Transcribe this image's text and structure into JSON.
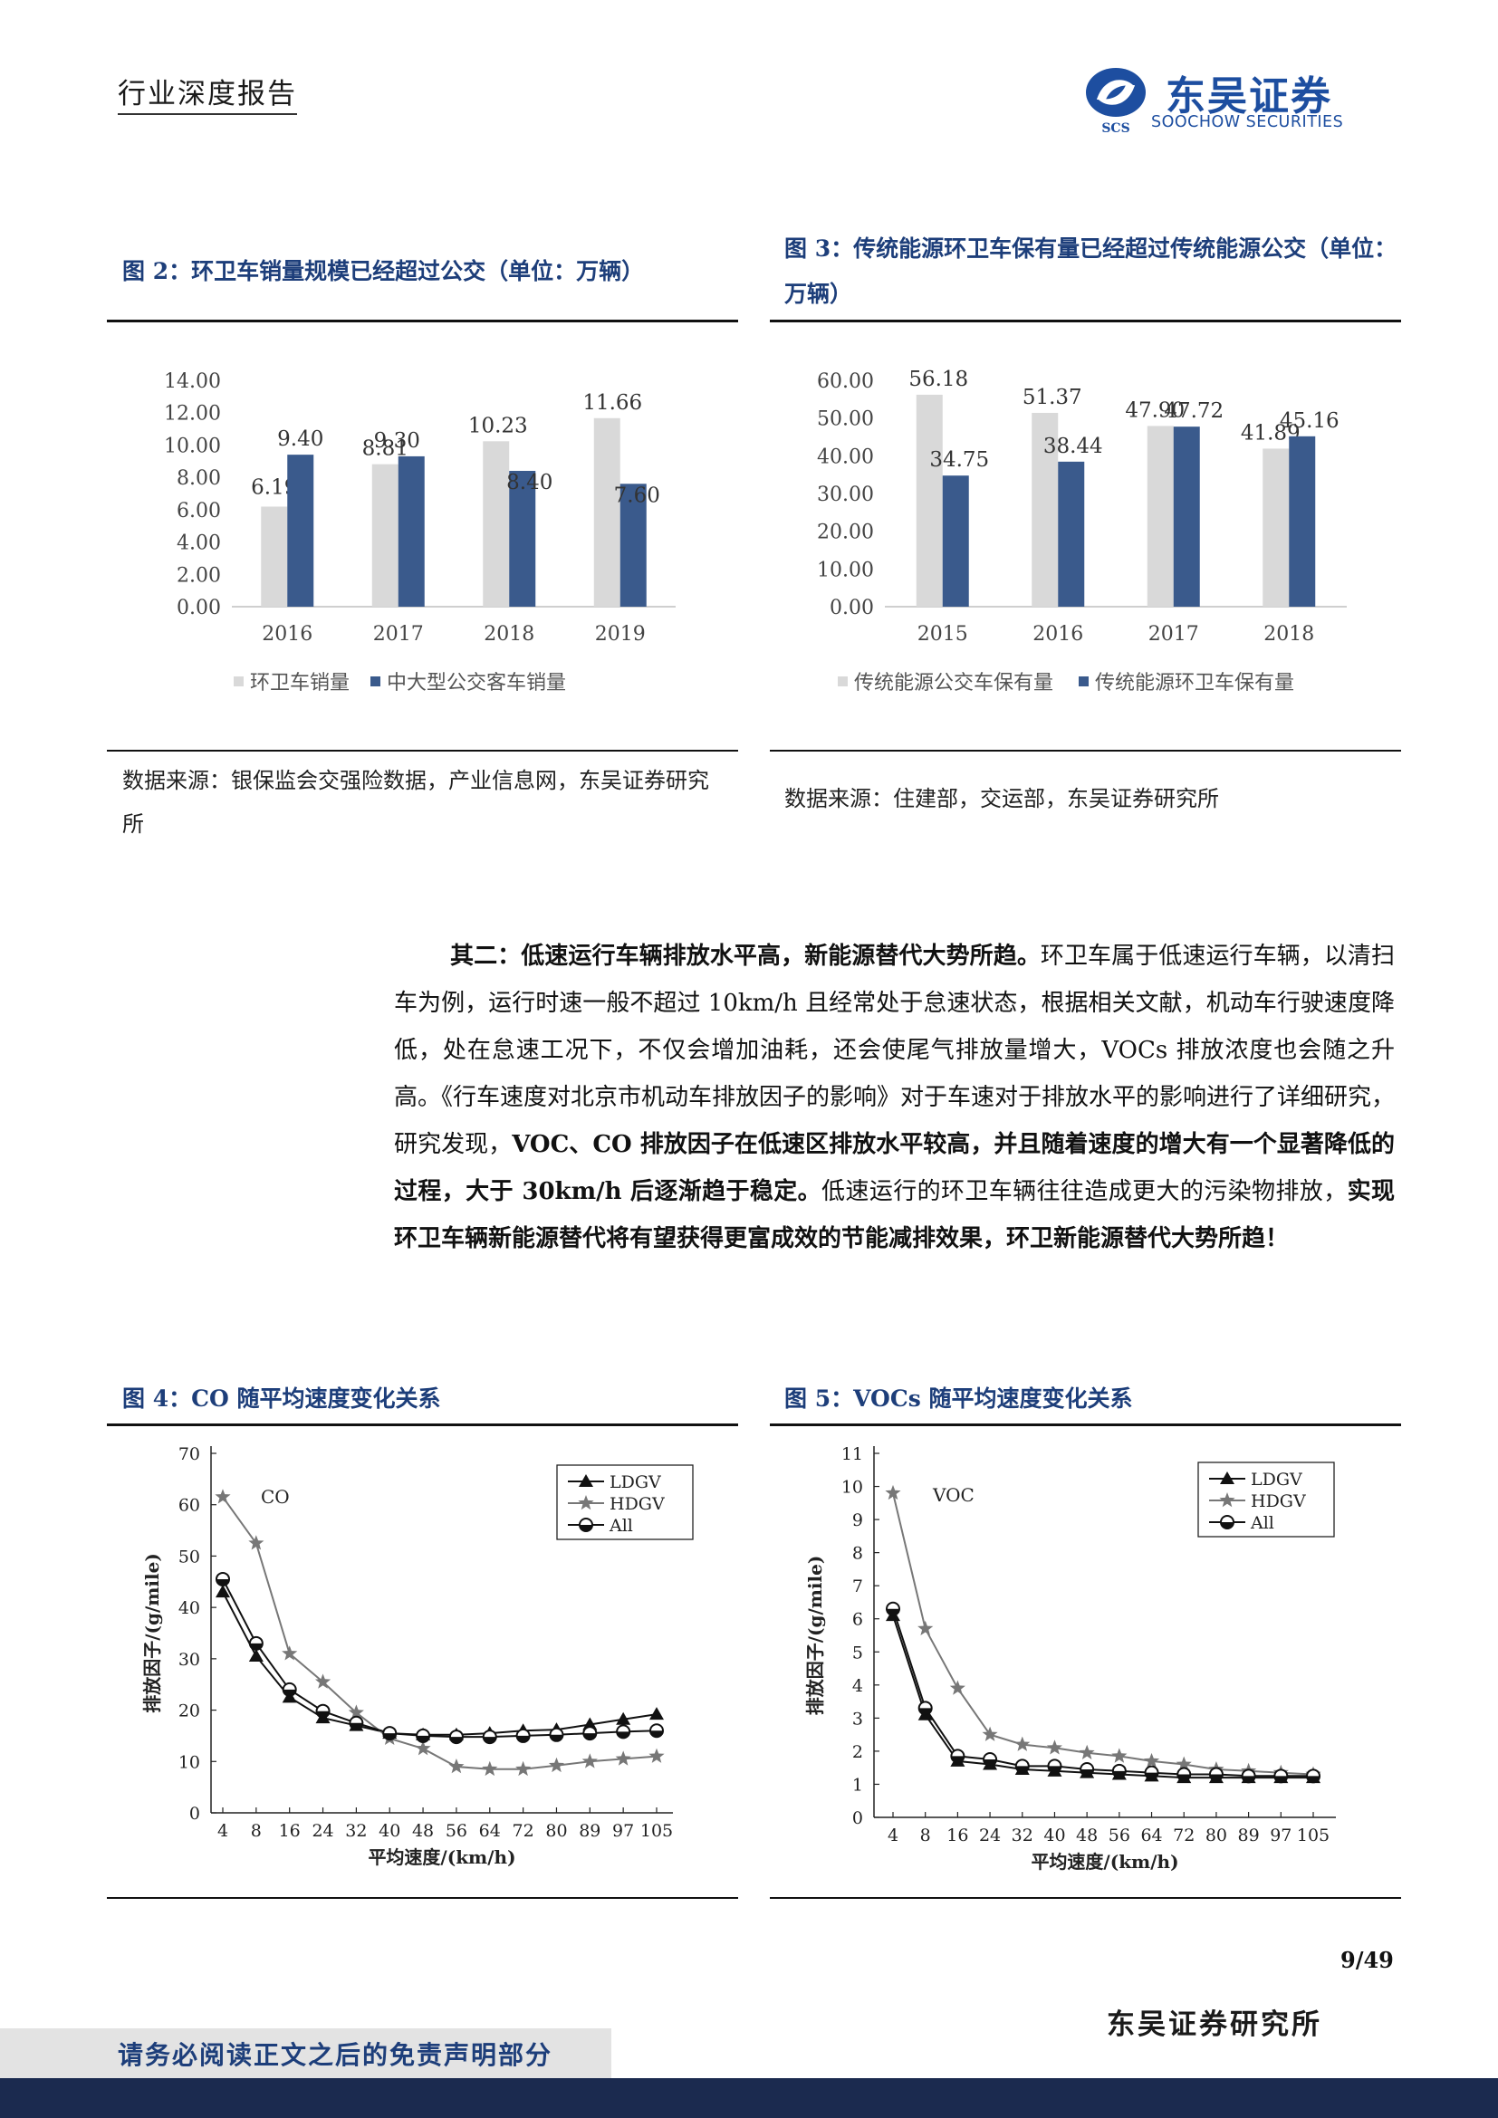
{
  "header": {
    "title": "行业深度报告",
    "logo_cn": "东吴证券",
    "logo_en": "SOOCHOW SECURITIES",
    "logo_mark": "SCS"
  },
  "fig2": {
    "title": "图 2：环卫车销量规模已经超过公交（单位：万辆）",
    "source": "数据来源：银保监会交强险数据，产业信息网，东吴证券研究所"
  },
  "fig3": {
    "title": "图 3：传统能源环卫车保有量已经超过传统能源公交（单位：万辆）",
    "source": "数据来源：住建部，交运部，东吴证券研究所"
  },
  "fig4": {
    "title": "图 4：CO 随平均速度变化关系"
  },
  "fig5": {
    "title": "图 5：VOCs 随平均速度变化关系"
  },
  "body": {
    "p1_bold": "其二：低速运行车辆排放水平高，新能源替代大势所趋。",
    "p1_a": "环卫车属于低速运行车辆，以清扫车为例，运行时速一般不超过 10km/h 且经常处于怠速状态，根据相关文献，机动车行驶速度降低，处在怠速工况下，不仅会增加油耗，还会使尾气排放量增大，VOCs 排放浓度也会随之升高。《行车速度对北京市机动车排放因子的影响》对于车速对于排放水平的影响进行了详细研究，研究发现，",
    "p1_bold2": "VOC、CO 排放因子在低速区排放水平较高，并且随着速度的增大有一个显著降低的过程，大于 30km/h 后逐渐趋于稳定。",
    "p1_b": "低速运行的环卫车辆往往造成更大的污染物排放，",
    "p1_bold3": "实现环卫车辆新能源替代将有望获得更富成效的节能减排效果，环卫新能源替代大势所趋！"
  },
  "footer": {
    "page": "9/49",
    "institute": "东吴证券研究所",
    "disclaimer": "请务必阅读正文之后的免责声明部分"
  },
  "chart_data": [
    {
      "type": "bar",
      "title": "",
      "categories": [
        "2016",
        "2017",
        "2018",
        "2019"
      ],
      "series": [
        {
          "name": "环卫车销量",
          "values": [
            6.19,
            8.81,
            10.23,
            11.66
          ],
          "color": "#d9d9d9"
        },
        {
          "name": "中大型公交客车销量",
          "values": [
            9.4,
            9.3,
            8.4,
            7.6
          ],
          "color": "#3a5a8c"
        }
      ],
      "ylim": [
        0,
        14
      ],
      "yticks": [
        "0.00",
        "2.00",
        "4.00",
        "6.00",
        "8.00",
        "10.00",
        "12.00",
        "14.00"
      ],
      "legend": "bottom"
    },
    {
      "type": "bar",
      "title": "",
      "categories": [
        "2015",
        "2016",
        "2017",
        "2018"
      ],
      "series": [
        {
          "name": "传统能源公交车保有量",
          "values": [
            56.18,
            51.37,
            47.9,
            41.89
          ],
          "color": "#d9d9d9"
        },
        {
          "name": "传统能源环卫车保有量",
          "values": [
            34.75,
            38.44,
            47.72,
            45.16
          ],
          "color": "#3a5a8c"
        }
      ],
      "ylim": [
        0,
        60
      ],
      "yticks": [
        "0.00",
        "10.00",
        "20.00",
        "30.00",
        "40.00",
        "50.00",
        "60.00"
      ],
      "legend": "bottom"
    },
    {
      "type": "line",
      "annotation": "CO",
      "x": [
        4,
        8,
        16,
        24,
        32,
        40,
        48,
        56,
        64,
        72,
        80,
        89,
        97,
        105
      ],
      "series": [
        {
          "name": "LDGV",
          "marker": "triangle",
          "values": [
            43,
            30.5,
            22.5,
            18.5,
            17,
            15.5,
            15.2,
            15.2,
            15.5,
            16,
            16.2,
            17.2,
            18.2,
            19.2
          ]
        },
        {
          "name": "HDGV",
          "marker": "star",
          "values": [
            61.5,
            52.5,
            31,
            25.5,
            19.5,
            14.5,
            12.5,
            9,
            8.5,
            8.5,
            9.2,
            10,
            10.5,
            11
          ]
        },
        {
          "name": "All",
          "marker": "circle",
          "values": [
            45.5,
            33,
            24,
            19.8,
            17.5,
            15.5,
            15,
            14.8,
            14.8,
            15,
            15.2,
            15.5,
            15.8,
            16
          ]
        }
      ],
      "xlabel": "平均速度/(km/h)",
      "ylabel": "排放因子/(g/mile)",
      "ylim": [
        0,
        70
      ],
      "yticks": [
        0,
        10,
        20,
        30,
        40,
        50,
        60,
        70
      ],
      "legend": "top-right"
    },
    {
      "type": "line",
      "annotation": "VOC",
      "x": [
        4,
        8,
        16,
        24,
        32,
        40,
        48,
        56,
        64,
        72,
        80,
        89,
        97,
        105
      ],
      "series": [
        {
          "name": "LDGV",
          "marker": "triangle",
          "values": [
            6.1,
            3.1,
            1.7,
            1.6,
            1.45,
            1.4,
            1.35,
            1.3,
            1.25,
            1.2,
            1.2,
            1.2,
            1.2,
            1.2
          ]
        },
        {
          "name": "HDGV",
          "marker": "star",
          "values": [
            9.8,
            5.7,
            3.9,
            2.5,
            2.2,
            2.1,
            1.95,
            1.85,
            1.7,
            1.6,
            1.45,
            1.4,
            1.35,
            1.3
          ]
        },
        {
          "name": "All",
          "marker": "circle",
          "values": [
            6.3,
            3.3,
            1.85,
            1.75,
            1.55,
            1.55,
            1.45,
            1.4,
            1.35,
            1.3,
            1.3,
            1.25,
            1.25,
            1.25
          ]
        }
      ],
      "xlabel": "平均速度/(km/h)",
      "ylabel": "排放因子/(g/mile)",
      "ylim": [
        0,
        11
      ],
      "yticks": [
        0,
        1,
        2,
        3,
        4,
        5,
        6,
        7,
        8,
        9,
        10,
        11
      ],
      "legend": "top-right"
    }
  ]
}
